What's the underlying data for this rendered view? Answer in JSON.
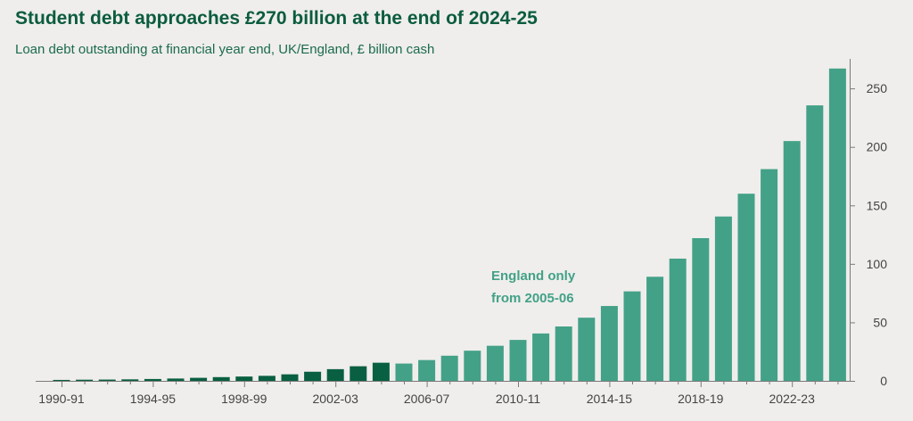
{
  "chart_data": {
    "type": "bar",
    "title": "Student debt approaches £270 billion at the end of 2024-25",
    "subtitle": "Loan debt outstanding at financial year end, UK/England, £ billion cash",
    "xlabel": "",
    "ylabel": "",
    "ylim": [
      0,
      270
    ],
    "yticks": [
      "0",
      "50",
      "100",
      "150",
      "200",
      "250"
    ],
    "ytick_values": [
      0,
      50,
      100,
      150,
      200,
      250
    ],
    "annotation": [
      "England only",
      "from 2005-06"
    ],
    "categories": [
      "1990-91",
      "1991-92",
      "1992-93",
      "1993-94",
      "1994-95",
      "1995-96",
      "1996-97",
      "1997-98",
      "1998-99",
      "1999-00",
      "2000-01",
      "2001-02",
      "2002-03",
      "2003-04",
      "2004-05",
      "2005-06",
      "2006-07",
      "2007-08",
      "2008-09",
      "2009-10",
      "2010-11",
      "2011-12",
      "2012-13",
      "2013-14",
      "2014-15",
      "2015-16",
      "2016-17",
      "2017-18",
      "2018-19",
      "2019-20",
      "2020-21",
      "2021-22",
      "2022-23",
      "2023-24",
      "2024-25"
    ],
    "x_tick_labels": [
      "1990-91",
      "1994-95",
      "1998-99",
      "2002-03",
      "2006-07",
      "2010-11",
      "2014-15",
      "2018-19",
      "2022-23"
    ],
    "values": [
      0.8,
      1.0,
      1.1,
      1.3,
      1.6,
      2.0,
      2.6,
      3.2,
      3.7,
      4.3,
      5.6,
      7.8,
      10.0,
      12.5,
      15.5,
      14.8,
      17.8,
      21.5,
      25.8,
      30.0,
      35.0,
      40.5,
      46.5,
      54.0,
      64.0,
      76.5,
      89.0,
      104.5,
      122.0,
      140.5,
      160.0,
      181.0,
      205.0,
      235.5,
      267.0
    ],
    "series_colors": {
      "uk": "#095f42",
      "england": "#43a187"
    },
    "england_only_from_index": 15,
    "grid": false,
    "legend": "none"
  }
}
